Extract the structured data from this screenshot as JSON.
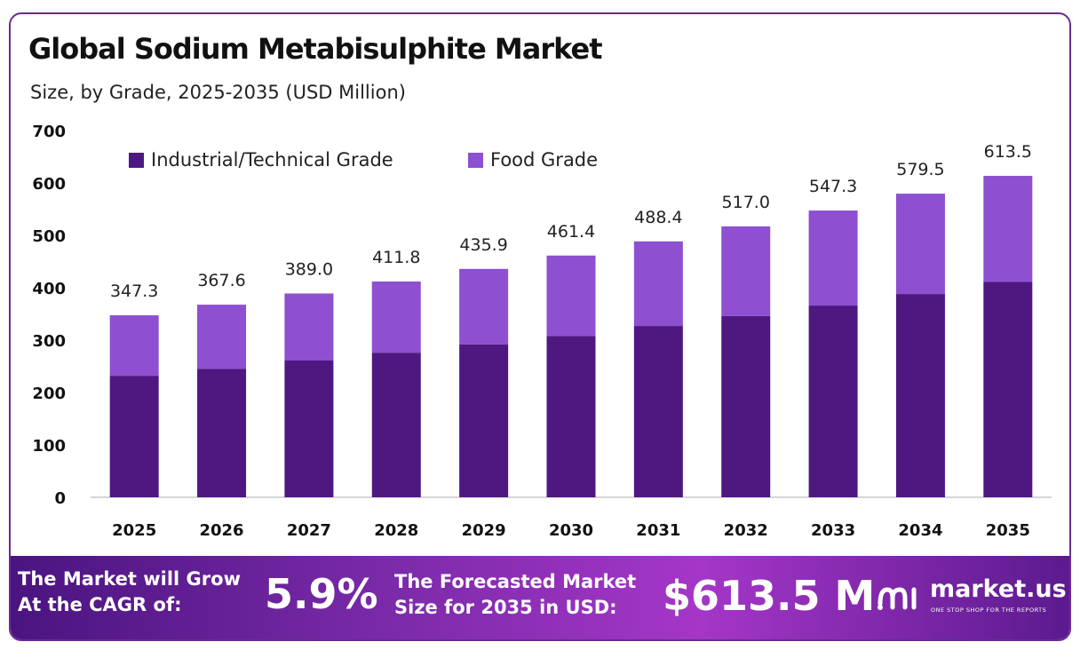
{
  "header": {
    "title": "Global Sodium Metabisulphite Market",
    "subtitle": "Size, by Grade, 2025-2035 (USD Million)"
  },
  "chart_data": {
    "type": "bar",
    "stacked": true,
    "categories": [
      "2025",
      "2026",
      "2027",
      "2028",
      "2029",
      "2030",
      "2031",
      "2032",
      "2033",
      "2034",
      "2035"
    ],
    "series": [
      {
        "name": "Industrial/Technical Grade",
        "color": "#4f1880",
        "values": [
          232,
          245,
          261,
          276,
          292,
          308,
          327,
          346,
          366,
          388,
          411
        ]
      },
      {
        "name": "Food Grade",
        "color": "#8e4fd1",
        "values": [
          115.3,
          122.6,
          128.0,
          135.8,
          143.9,
          153.4,
          161.4,
          171.0,
          181.3,
          191.5,
          202.5
        ]
      }
    ],
    "totals_labels": [
      "347.3",
      "367.6",
      "389.0",
      "411.8",
      "435.9",
      "461.4",
      "488.4",
      "517.0",
      "547.3",
      "579.5",
      "613.5"
    ],
    "totals": [
      347.3,
      367.6,
      389.0,
      411.8,
      435.9,
      461.4,
      488.4,
      517.0,
      547.3,
      579.5,
      613.5
    ],
    "ylim": [
      0,
      700
    ],
    "yticks": [
      "0",
      "100",
      "200",
      "300",
      "400",
      "500",
      "600",
      "700"
    ],
    "ytick_values": [
      0,
      100,
      200,
      300,
      400,
      500,
      600,
      700
    ],
    "xlabel": "",
    "ylabel": "",
    "legend_position": "top-left",
    "grid": false
  },
  "footer": {
    "cagr_line1": "The Market will Grow",
    "cagr_line2": "At the CAGR of:",
    "cagr_value": "5.9%",
    "forecast_line1": "The Forecasted Market",
    "forecast_line2": "Size for 2035 in USD:",
    "forecast_value": "$613.5 M",
    "logo_name": "market.us",
    "logo_tagline": "ONE STOP SHOP FOR THE REPORTS",
    "logo_icon": "market-us-logo-icon"
  }
}
